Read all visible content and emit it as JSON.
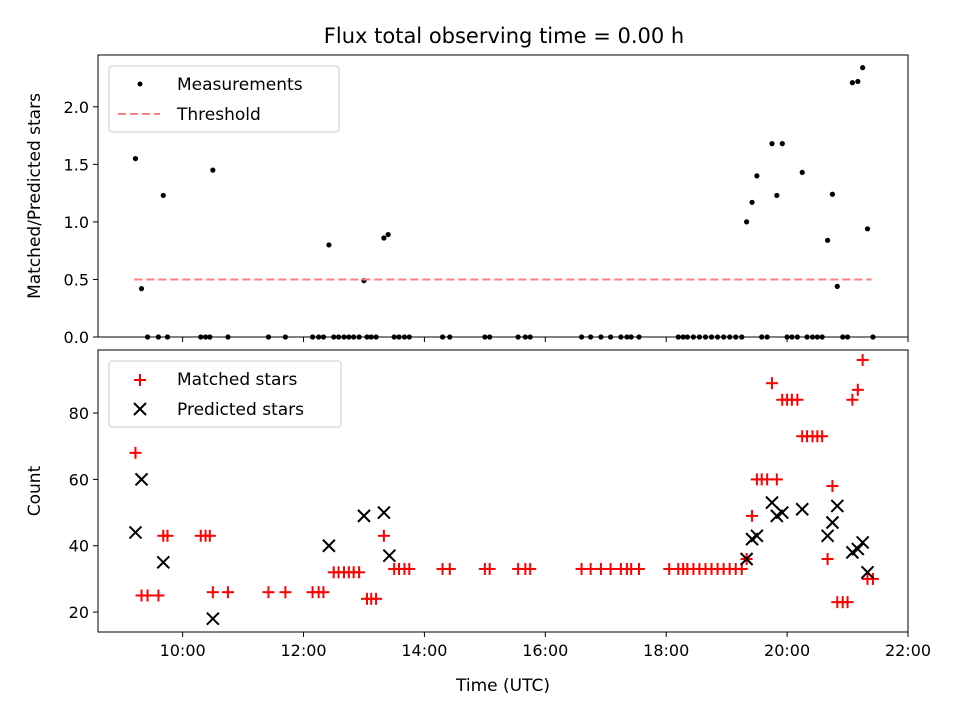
{
  "title": "Flux total observing time = 0.00 h",
  "chart_data": [
    {
      "type": "scatter",
      "ylabel": "Matched/Predicted stars",
      "xlim": [
        8.6,
        22.0
      ],
      "ylim": [
        0,
        2.45
      ],
      "yticks": [
        0.0,
        0.5,
        1.0,
        1.5,
        2.0
      ],
      "ytick_labels": [
        "0.0",
        "0.5",
        "1.0",
        "1.5",
        "2.0"
      ],
      "legend": {
        "placement": "top-left",
        "entries": [
          "Measurements",
          "Threshold"
        ]
      },
      "series": [
        {
          "name": "Measurements",
          "color": "#000000",
          "marker": "dot",
          "points": [
            [
              9.22,
              1.55
            ],
            [
              9.32,
              0.42
            ],
            [
              9.42,
              0
            ],
            [
              9.6,
              0
            ],
            [
              9.68,
              1.23
            ],
            [
              9.75,
              0
            ],
            [
              10.3,
              0
            ],
            [
              10.38,
              0
            ],
            [
              10.45,
              0
            ],
            [
              10.5,
              1.45
            ],
            [
              10.75,
              0
            ],
            [
              11.42,
              0
            ],
            [
              11.7,
              0
            ],
            [
              12.15,
              0
            ],
            [
              12.25,
              0
            ],
            [
              12.33,
              0
            ],
            [
              12.42,
              0.8
            ],
            [
              12.5,
              0
            ],
            [
              12.58,
              0
            ],
            [
              12.67,
              0
            ],
            [
              12.75,
              0
            ],
            [
              12.83,
              0
            ],
            [
              12.92,
              0
            ],
            [
              13.0,
              0.49
            ],
            [
              13.05,
              0
            ],
            [
              13.12,
              0
            ],
            [
              13.2,
              0
            ],
            [
              13.33,
              0.86
            ],
            [
              13.4,
              0.89
            ],
            [
              13.5,
              0
            ],
            [
              13.58,
              0
            ],
            [
              13.67,
              0
            ],
            [
              13.75,
              0
            ],
            [
              14.3,
              0
            ],
            [
              14.42,
              0
            ],
            [
              15.0,
              0
            ],
            [
              15.08,
              0
            ],
            [
              15.55,
              0
            ],
            [
              15.67,
              0
            ],
            [
              15.75,
              0
            ],
            [
              16.6,
              0
            ],
            [
              16.75,
              0
            ],
            [
              16.92,
              0
            ],
            [
              17.08,
              0
            ],
            [
              17.25,
              0
            ],
            [
              17.35,
              0
            ],
            [
              17.42,
              0
            ],
            [
              17.55,
              0
            ],
            [
              18.2,
              0
            ],
            [
              18.28,
              0
            ],
            [
              18.35,
              0
            ],
            [
              18.45,
              0
            ],
            [
              18.55,
              0
            ],
            [
              18.65,
              0
            ],
            [
              18.75,
              0
            ],
            [
              18.85,
              0
            ],
            [
              18.95,
              0
            ],
            [
              19.05,
              0
            ],
            [
              19.15,
              0
            ],
            [
              19.25,
              0
            ],
            [
              19.33,
              1.0
            ],
            [
              19.42,
              1.17
            ],
            [
              19.5,
              1.4
            ],
            [
              19.58,
              0
            ],
            [
              19.67,
              0
            ],
            [
              19.75,
              1.68
            ],
            [
              19.83,
              1.23
            ],
            [
              19.92,
              1.68
            ],
            [
              20.0,
              0
            ],
            [
              20.08,
              0
            ],
            [
              20.17,
              0
            ],
            [
              20.25,
              1.43
            ],
            [
              20.33,
              0
            ],
            [
              20.42,
              0
            ],
            [
              20.5,
              0
            ],
            [
              20.58,
              0
            ],
            [
              20.67,
              0.84
            ],
            [
              20.75,
              1.24
            ],
            [
              20.83,
              0.44
            ],
            [
              20.92,
              0
            ],
            [
              21.0,
              0
            ],
            [
              21.08,
              2.21
            ],
            [
              21.17,
              2.22
            ],
            [
              21.25,
              2.34
            ],
            [
              21.33,
              0.94
            ],
            [
              21.42,
              0
            ]
          ]
        },
        {
          "name": "Threshold",
          "color": "#ff7f7f",
          "style": "dashed",
          "x": [
            9.2,
            21.4
          ],
          "y": [
            0.5,
            0.5
          ]
        }
      ]
    },
    {
      "type": "scatter",
      "xlabel": "Time (UTC)",
      "ylabel": "Count",
      "xlim": [
        8.6,
        22.0
      ],
      "ylim": [
        14,
        99
      ],
      "yticks": [
        20,
        40,
        60,
        80
      ],
      "ytick_labels": [
        "20",
        "40",
        "60",
        "80"
      ],
      "xticks": [
        10,
        12,
        14,
        16,
        18,
        20,
        22
      ],
      "xtick_labels": [
        "10:00",
        "12:00",
        "14:00",
        "16:00",
        "18:00",
        "20:00",
        "22:00"
      ],
      "legend": {
        "placement": "top-left",
        "entries": [
          "Matched stars",
          "Predicted stars"
        ]
      },
      "series": [
        {
          "name": "Matched stars",
          "color": "#ff0000",
          "marker": "plus",
          "points": [
            [
              9.22,
              68
            ],
            [
              9.32,
              25
            ],
            [
              9.42,
              25
            ],
            [
              9.6,
              25
            ],
            [
              9.68,
              43
            ],
            [
              9.75,
              43
            ],
            [
              10.3,
              43
            ],
            [
              10.38,
              43
            ],
            [
              10.45,
              43
            ],
            [
              10.5,
              26
            ],
            [
              10.75,
              26
            ],
            [
              11.42,
              26
            ],
            [
              11.7,
              26
            ],
            [
              12.15,
              26
            ],
            [
              12.25,
              26
            ],
            [
              12.33,
              26
            ],
            [
              12.5,
              32
            ],
            [
              12.58,
              32
            ],
            [
              12.67,
              32
            ],
            [
              12.75,
              32
            ],
            [
              12.83,
              32
            ],
            [
              12.92,
              32
            ],
            [
              13.05,
              24
            ],
            [
              13.12,
              24
            ],
            [
              13.2,
              24
            ],
            [
              13.33,
              43
            ],
            [
              13.5,
              33
            ],
            [
              13.58,
              33
            ],
            [
              13.67,
              33
            ],
            [
              13.75,
              33
            ],
            [
              14.3,
              33
            ],
            [
              14.42,
              33
            ],
            [
              15.0,
              33
            ],
            [
              15.08,
              33
            ],
            [
              15.55,
              33
            ],
            [
              15.67,
              33
            ],
            [
              15.75,
              33
            ],
            [
              16.6,
              33
            ],
            [
              16.75,
              33
            ],
            [
              16.92,
              33
            ],
            [
              17.08,
              33
            ],
            [
              17.25,
              33
            ],
            [
              17.35,
              33
            ],
            [
              17.42,
              33
            ],
            [
              17.55,
              33
            ],
            [
              18.05,
              33
            ],
            [
              18.2,
              33
            ],
            [
              18.28,
              33
            ],
            [
              18.35,
              33
            ],
            [
              18.45,
              33
            ],
            [
              18.55,
              33
            ],
            [
              18.65,
              33
            ],
            [
              18.75,
              33
            ],
            [
              18.85,
              33
            ],
            [
              18.95,
              33
            ],
            [
              19.05,
              33
            ],
            [
              19.15,
              33
            ],
            [
              19.25,
              33
            ],
            [
              19.33,
              36
            ],
            [
              19.42,
              49
            ],
            [
              19.5,
              60
            ],
            [
              19.58,
              60
            ],
            [
              19.67,
              60
            ],
            [
              19.75,
              89
            ],
            [
              19.83,
              60
            ],
            [
              19.92,
              84
            ],
            [
              20.0,
              84
            ],
            [
              20.08,
              84
            ],
            [
              20.17,
              84
            ],
            [
              20.25,
              73
            ],
            [
              20.33,
              73
            ],
            [
              20.42,
              73
            ],
            [
              20.5,
              73
            ],
            [
              20.58,
              73
            ],
            [
              20.67,
              36
            ],
            [
              20.75,
              58
            ],
            [
              20.83,
              23
            ],
            [
              20.92,
              23
            ],
            [
              21.0,
              23
            ],
            [
              21.08,
              84
            ],
            [
              21.17,
              87
            ],
            [
              21.25,
              96
            ],
            [
              21.33,
              30
            ],
            [
              21.42,
              30
            ]
          ]
        },
        {
          "name": "Predicted stars",
          "color": "#000000",
          "marker": "x",
          "points": [
            [
              9.22,
              44
            ],
            [
              9.32,
              60
            ],
            [
              9.68,
              35
            ],
            [
              10.5,
              18
            ],
            [
              12.42,
              40
            ],
            [
              13.0,
              49
            ],
            [
              13.33,
              50
            ],
            [
              13.42,
              37
            ],
            [
              19.33,
              36
            ],
            [
              19.42,
              42
            ],
            [
              19.5,
              43
            ],
            [
              19.75,
              53
            ],
            [
              19.83,
              49
            ],
            [
              19.92,
              50
            ],
            [
              20.25,
              51
            ],
            [
              20.67,
              43
            ],
            [
              20.75,
              47
            ],
            [
              20.83,
              52
            ],
            [
              21.08,
              38
            ],
            [
              21.17,
              39
            ],
            [
              21.25,
              41
            ],
            [
              21.33,
              32
            ]
          ]
        }
      ]
    }
  ]
}
